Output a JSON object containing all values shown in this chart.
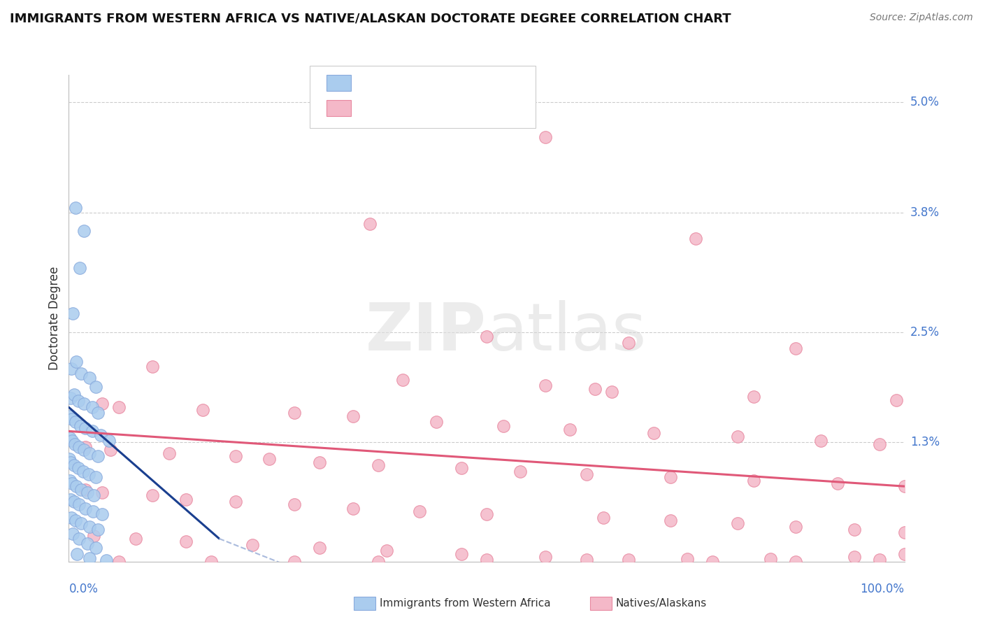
{
  "title": "IMMIGRANTS FROM WESTERN AFRICA VS NATIVE/ALASKAN DOCTORATE DEGREE CORRELATION CHART",
  "source": "Source: ZipAtlas.com",
  "ylabel": "Doctorate Degree",
  "legend_label1": "Immigrants from Western Africa",
  "legend_label2": "Natives/Alaskans",
  "blue_color": "#aaccee",
  "pink_color": "#f4b8c8",
  "blue_edge_color": "#88aadd",
  "pink_edge_color": "#e888a0",
  "blue_line_color": "#1a3f8f",
  "pink_line_color": "#e05878",
  "ylim": [
    0.0,
    5.3
  ],
  "xlim": [
    0.0,
    100.0
  ],
  "ytick_positions": [
    1.3,
    2.5,
    3.8,
    5.0
  ],
  "ytick_labels": [
    "1.3%",
    "2.5%",
    "3.8%",
    "5.0%"
  ],
  "blue_scatter": [
    [
      0.8,
      3.85
    ],
    [
      1.8,
      3.6
    ],
    [
      1.3,
      3.2
    ],
    [
      0.5,
      2.7
    ],
    [
      0.3,
      2.1
    ],
    [
      0.9,
      2.18
    ],
    [
      1.5,
      2.05
    ],
    [
      2.5,
      2.0
    ],
    [
      3.2,
      1.9
    ],
    [
      0.2,
      1.78
    ],
    [
      0.6,
      1.82
    ],
    [
      1.1,
      1.75
    ],
    [
      1.8,
      1.72
    ],
    [
      2.8,
      1.68
    ],
    [
      3.5,
      1.62
    ],
    [
      0.15,
      1.58
    ],
    [
      0.4,
      1.55
    ],
    [
      0.8,
      1.52
    ],
    [
      1.4,
      1.48
    ],
    [
      2.0,
      1.45
    ],
    [
      2.8,
      1.42
    ],
    [
      3.8,
      1.38
    ],
    [
      4.8,
      1.32
    ],
    [
      0.1,
      1.35
    ],
    [
      0.35,
      1.32
    ],
    [
      0.7,
      1.28
    ],
    [
      1.2,
      1.25
    ],
    [
      1.8,
      1.22
    ],
    [
      2.5,
      1.18
    ],
    [
      3.5,
      1.15
    ],
    [
      0.05,
      1.12
    ],
    [
      0.25,
      1.08
    ],
    [
      0.6,
      1.05
    ],
    [
      1.1,
      1.02
    ],
    [
      1.7,
      0.98
    ],
    [
      2.4,
      0.95
    ],
    [
      3.2,
      0.92
    ],
    [
      0.1,
      0.88
    ],
    [
      0.4,
      0.85
    ],
    [
      0.9,
      0.82
    ],
    [
      1.5,
      0.78
    ],
    [
      2.2,
      0.75
    ],
    [
      3.0,
      0.72
    ],
    [
      0.2,
      0.68
    ],
    [
      0.6,
      0.65
    ],
    [
      1.2,
      0.62
    ],
    [
      2.0,
      0.58
    ],
    [
      2.9,
      0.55
    ],
    [
      4.0,
      0.52
    ],
    [
      0.3,
      0.48
    ],
    [
      0.8,
      0.45
    ],
    [
      1.5,
      0.42
    ],
    [
      2.5,
      0.38
    ],
    [
      3.5,
      0.35
    ],
    [
      0.5,
      0.3
    ],
    [
      1.2,
      0.25
    ],
    [
      2.2,
      0.2
    ],
    [
      3.2,
      0.15
    ],
    [
      1.0,
      0.08
    ],
    [
      2.5,
      0.04
    ],
    [
      4.5,
      0.01
    ]
  ],
  "pink_scatter": [
    [
      57,
      4.62
    ],
    [
      36,
      3.68
    ],
    [
      75,
      3.52
    ],
    [
      50,
      2.45
    ],
    [
      67,
      2.38
    ],
    [
      87,
      2.32
    ],
    [
      10,
      2.12
    ],
    [
      40,
      1.98
    ],
    [
      57,
      1.92
    ],
    [
      63,
      1.88
    ],
    [
      65,
      1.85
    ],
    [
      82,
      1.8
    ],
    [
      99,
      1.76
    ],
    [
      4,
      1.72
    ],
    [
      6,
      1.68
    ],
    [
      16,
      1.65
    ],
    [
      27,
      1.62
    ],
    [
      34,
      1.58
    ],
    [
      44,
      1.52
    ],
    [
      52,
      1.48
    ],
    [
      60,
      1.44
    ],
    [
      70,
      1.4
    ],
    [
      80,
      1.36
    ],
    [
      90,
      1.32
    ],
    [
      97,
      1.28
    ],
    [
      2,
      1.25
    ],
    [
      5,
      1.22
    ],
    [
      12,
      1.18
    ],
    [
      20,
      1.15
    ],
    [
      24,
      1.12
    ],
    [
      30,
      1.08
    ],
    [
      37,
      1.05
    ],
    [
      47,
      1.02
    ],
    [
      54,
      0.98
    ],
    [
      62,
      0.95
    ],
    [
      72,
      0.92
    ],
    [
      82,
      0.88
    ],
    [
      92,
      0.85
    ],
    [
      100,
      0.82
    ],
    [
      2,
      0.78
    ],
    [
      4,
      0.75
    ],
    [
      10,
      0.72
    ],
    [
      14,
      0.68
    ],
    [
      20,
      0.65
    ],
    [
      27,
      0.62
    ],
    [
      34,
      0.58
    ],
    [
      42,
      0.55
    ],
    [
      50,
      0.52
    ],
    [
      64,
      0.48
    ],
    [
      72,
      0.45
    ],
    [
      80,
      0.42
    ],
    [
      87,
      0.38
    ],
    [
      94,
      0.35
    ],
    [
      100,
      0.32
    ],
    [
      3,
      0.28
    ],
    [
      8,
      0.25
    ],
    [
      14,
      0.22
    ],
    [
      22,
      0.18
    ],
    [
      30,
      0.15
    ],
    [
      38,
      0.12
    ],
    [
      47,
      0.08
    ],
    [
      57,
      0.05
    ],
    [
      67,
      0.02
    ],
    [
      77,
      0.0
    ],
    [
      87,
      0.0
    ],
    [
      97,
      0.02
    ],
    [
      6,
      0.0
    ],
    [
      17,
      0.0
    ],
    [
      27,
      0.0
    ],
    [
      37,
      0.0
    ],
    [
      50,
      0.02
    ],
    [
      62,
      0.02
    ],
    [
      74,
      0.03
    ],
    [
      84,
      0.03
    ],
    [
      94,
      0.05
    ],
    [
      100,
      0.08
    ]
  ],
  "blue_line": [
    [
      0.0,
      1.68
    ],
    [
      18.0,
      0.25
    ]
  ],
  "blue_dash_line": [
    [
      18.0,
      0.25
    ],
    [
      50.0,
      -0.9
    ]
  ],
  "pink_line": [
    [
      0.0,
      1.42
    ],
    [
      100.0,
      0.82
    ]
  ]
}
